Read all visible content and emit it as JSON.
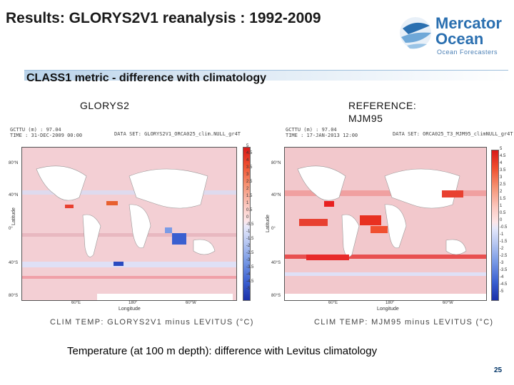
{
  "slide": {
    "title": "Results: GLORYS2V1 reanalysis : 1992-2009",
    "subtitle": "CLASS1 metric - difference with climatology",
    "caption": "Temperature (at 100 m depth): difference with Levitus climatology",
    "page_number": "25"
  },
  "logo": {
    "line1": "Mercator",
    "line2": "Ocean",
    "tagline": "Ocean Forecasters"
  },
  "colors": {
    "title": "#1a1a1a",
    "logo_blue": "#2a6fb0",
    "band": "#b9d3ea",
    "page_number": "#003366"
  },
  "panels": [
    {
      "label": "GLORYS2",
      "header_left": "GCTTU (m) : 97.04\nTIME : 31-DEC-2009 00:00",
      "header_right": "DATA SET: GLORYS2V1_ORCA025_clim.NULL_gr4T",
      "y_axis_label": "Latitude",
      "x_axis_label": "Longitude",
      "y_ticks": [
        "80°N",
        "40°N",
        "0°",
        "40°S",
        "80°S"
      ],
      "x_ticks": [
        "60°E",
        "180°",
        "60°W"
      ],
      "map_caption": "CLIM TEMP: GLORYS2V1 minus LEVITUS (°C)"
    },
    {
      "label": "REFERENCE:\nMJM95",
      "header_left": "GCTTU (m) : 97.04\nTIME : 17-JAN-2013 12:00",
      "header_right": "DATA SET: ORCA025_T3_MJM95_climNULL_gr4T",
      "y_axis_label": "Latitude",
      "x_axis_label": "Longitude",
      "y_ticks": [
        "80°N",
        "40°N",
        "0°",
        "40°S",
        "80°S"
      ],
      "x_ticks": [
        "60°E",
        "180°",
        "60°W"
      ],
      "map_caption": "CLIM TEMP: MJM95 minus LEVITUS (°C)"
    }
  ],
  "colorbar_ticks": [
    "5",
    "4.5",
    "4",
    "3.5",
    "3",
    "2.5",
    "2",
    "1.5",
    "1",
    "0.5",
    "0",
    "-0.5",
    "-1",
    "-1.5",
    "-2",
    "-2.5",
    "-3",
    "-3.5",
    "-4",
    "-4.5",
    "-5"
  ]
}
